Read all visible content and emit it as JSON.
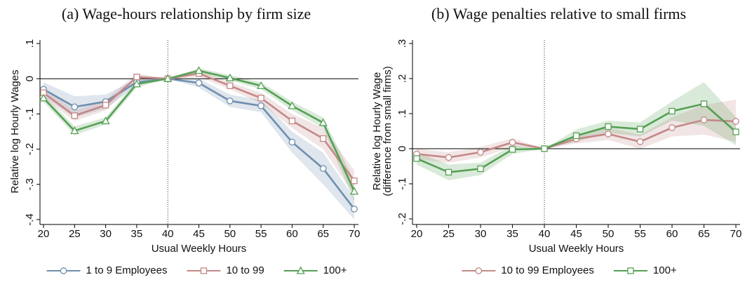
{
  "chart_data": [
    {
      "type": "line",
      "title": "(a) Wage-hours relationship by firm size",
      "xlabel": "Usual Weekly Hours",
      "ylabel": [
        "Relative log Hourly Wages"
      ],
      "x": [
        20,
        25,
        30,
        35,
        40,
        45,
        50,
        55,
        60,
        65,
        70
      ],
      "xlim": [
        20,
        70
      ],
      "xticks": [
        20,
        25,
        30,
        35,
        40,
        45,
        50,
        55,
        60,
        65,
        70
      ],
      "ylim": [
        -0.4,
        0.1
      ],
      "yticks": [
        {
          "value": -0.4,
          "label": "-.4"
        },
        {
          "value": -0.3,
          "label": "-.3"
        },
        {
          "value": -0.2,
          "label": "-.2"
        },
        {
          "value": -0.1,
          "label": "-.1"
        },
        0,
        {
          "value": 0.1,
          "label": ".1"
        }
      ],
      "hline": 0,
      "vline": 40,
      "series": [
        {
          "name": "1 to 9 Employees",
          "color": "#6f8fae",
          "marker": "circle",
          "values": [
            -0.03,
            -0.08,
            -0.065,
            -0.01,
            0,
            -0.012,
            -0.063,
            -0.077,
            -0.18,
            -0.255,
            -0.37
          ],
          "lower": [
            -0.05,
            -0.11,
            -0.085,
            -0.02,
            0,
            -0.025,
            -0.08,
            -0.095,
            -0.21,
            -0.3,
            -0.4
          ],
          "upper": [
            -0.01,
            -0.05,
            -0.045,
            0.0,
            0,
            0.0,
            -0.045,
            -0.06,
            -0.15,
            -0.21,
            -0.34
          ]
        },
        {
          "name": "10 to 99",
          "color": "#c48888",
          "marker": "square",
          "values": [
            -0.04,
            -0.105,
            -0.075,
            0.005,
            0,
            0.015,
            -0.02,
            -0.055,
            -0.12,
            -0.17,
            -0.29
          ],
          "lower": [
            -0.055,
            -0.12,
            -0.09,
            -0.005,
            0,
            0.005,
            -0.03,
            -0.07,
            -0.14,
            -0.2,
            -0.33
          ],
          "upper": [
            -0.025,
            -0.09,
            -0.06,
            0.015,
            0,
            0.025,
            -0.01,
            -0.04,
            -0.1,
            -0.14,
            -0.26
          ]
        },
        {
          "name": "100+",
          "color": "#55a055",
          "marker": "triangle",
          "values": [
            -0.055,
            -0.148,
            -0.12,
            -0.015,
            0,
            0.023,
            0.002,
            -0.02,
            -0.077,
            -0.125,
            -0.32
          ],
          "lower": [
            -0.065,
            -0.16,
            -0.13,
            -0.025,
            0,
            0.015,
            -0.005,
            -0.03,
            -0.09,
            -0.14,
            -0.35
          ],
          "upper": [
            -0.045,
            -0.135,
            -0.11,
            -0.005,
            0,
            0.03,
            0.01,
            -0.01,
            -0.065,
            -0.11,
            -0.29
          ]
        }
      ]
    },
    {
      "type": "line",
      "title": "(b) Wage penalties relative to small firms",
      "xlabel": "Usual Weekly Hours",
      "ylabel": [
        "Relative log Hourly Wage",
        "(difference from small firms)"
      ],
      "x": [
        20,
        25,
        30,
        35,
        40,
        45,
        50,
        55,
        60,
        65,
        70
      ],
      "xlim": [
        20,
        70
      ],
      "xticks": [
        20,
        25,
        30,
        35,
        40,
        45,
        50,
        55,
        60,
        65,
        70
      ],
      "ylim": [
        -0.2,
        0.3
      ],
      "yticks": [
        {
          "value": -0.2,
          "label": "-.2"
        },
        {
          "value": -0.1,
          "label": "-.1"
        },
        0,
        {
          "value": 0.1,
          "label": ".1"
        },
        {
          "value": 0.2,
          "label": ".2"
        },
        {
          "value": 0.3,
          "label": ".3"
        }
      ],
      "hline": 0,
      "vline": 40,
      "series": [
        {
          "name": "10 to 99 Employees",
          "color": "#c48888",
          "marker": "circle",
          "values": [
            -0.015,
            -0.025,
            -0.01,
            0.018,
            0,
            0.028,
            0.042,
            0.02,
            0.06,
            0.082,
            0.078
          ],
          "lower": [
            -0.03,
            -0.04,
            -0.025,
            0.005,
            0,
            0.015,
            0.025,
            0.0,
            0.035,
            0.04,
            0.02
          ],
          "upper": [
            0.0,
            -0.01,
            0.005,
            0.03,
            0,
            0.04,
            0.06,
            0.04,
            0.09,
            0.125,
            0.14
          ]
        },
        {
          "name": "100+",
          "color": "#55a055",
          "marker": "square",
          "values": [
            -0.028,
            -0.067,
            -0.057,
            -0.002,
            0,
            0.037,
            0.063,
            0.056,
            0.107,
            0.128,
            0.048
          ],
          "lower": [
            -0.045,
            -0.09,
            -0.075,
            -0.015,
            0,
            0.02,
            0.045,
            0.035,
            0.08,
            0.065,
            0.01
          ],
          "upper": [
            -0.01,
            -0.045,
            -0.04,
            0.01,
            0,
            0.055,
            0.08,
            0.075,
            0.135,
            0.19,
            0.09
          ]
        }
      ]
    }
  ]
}
